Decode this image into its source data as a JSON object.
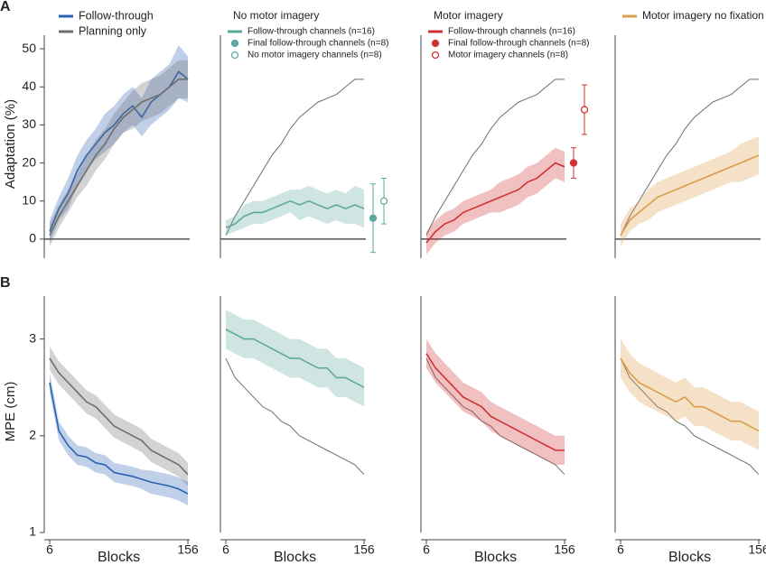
{
  "chart_data": [
    {
      "type": "line",
      "panel_label": "A",
      "ylabel": "Adaptation (%)",
      "ylim": [
        -5,
        55
      ],
      "yticks": [
        0,
        10,
        20,
        30,
        40,
        50
      ],
      "xlim": [
        6,
        156
      ],
      "zero_line": true,
      "x": [
        6,
        16,
        26,
        36,
        46,
        56,
        66,
        76,
        86,
        96,
        106,
        116,
        126,
        136,
        146,
        156
      ],
      "series": [
        {
          "name": "Follow-through",
          "color": "#2a62b4",
          "values": [
            2,
            8,
            12,
            18,
            22,
            25,
            28,
            30,
            33,
            35,
            32,
            36,
            38,
            40,
            44,
            42
          ],
          "errors": [
            3,
            3,
            4,
            4,
            4,
            4,
            5,
            5,
            5,
            5,
            5,
            6,
            6,
            6,
            7,
            6
          ]
        },
        {
          "name": "Planning only",
          "color": "#6e6e6e",
          "values": [
            1,
            6,
            10,
            14,
            18,
            22,
            25,
            29,
            32,
            34,
            36,
            37,
            38,
            40,
            42,
            42
          ],
          "errors": [
            3,
            3,
            3,
            3,
            4,
            4,
            4,
            4,
            4,
            5,
            5,
            5,
            5,
            5,
            5,
            5
          ]
        }
      ]
    },
    {
      "type": "line",
      "title": "No motor imagery",
      "ylim": [
        -5,
        55
      ],
      "xlim": [
        6,
        156
      ],
      "zero_line": true,
      "x": [
        6,
        16,
        26,
        36,
        46,
        56,
        66,
        76,
        86,
        96,
        106,
        116,
        126,
        136,
        146,
        156
      ],
      "series": [
        {
          "color": "#6e6e6e",
          "values": [
            1,
            6,
            10,
            14,
            18,
            22,
            25,
            29,
            32,
            34,
            36,
            37,
            38,
            40,
            42,
            42
          ]
        },
        {
          "name": "Follow-through channels (n=16)",
          "color": "#5fa8a0",
          "values": [
            3,
            4,
            6,
            7,
            7,
            8,
            9,
            10,
            9,
            10,
            9,
            8,
            9,
            8,
            9,
            8
          ],
          "errors": [
            2,
            2,
            3,
            3,
            3,
            3,
            3,
            3,
            4,
            4,
            4,
            4,
            4,
            4,
            5,
            5
          ]
        }
      ],
      "points": [
        {
          "name": "Final follow-through channels (n=8)",
          "color": "#5fa8a0",
          "filled": true,
          "value": 5.5,
          "error": 9
        },
        {
          "name": "No motor imagery channels (n=8)",
          "color": "#5fa8a0",
          "filled": false,
          "value": 10,
          "error": 6
        }
      ]
    },
    {
      "type": "line",
      "title": "Motor imagery",
      "ylim": [
        -5,
        55
      ],
      "xlim": [
        6,
        156
      ],
      "zero_line": true,
      "x": [
        6,
        16,
        26,
        36,
        46,
        56,
        66,
        76,
        86,
        96,
        106,
        116,
        126,
        136,
        146,
        156
      ],
      "series": [
        {
          "color": "#6e6e6e",
          "values": [
            1,
            6,
            10,
            14,
            18,
            22,
            25,
            29,
            32,
            34,
            36,
            37,
            38,
            40,
            42,
            42
          ]
        },
        {
          "name": "Follow-through channels (n=16)",
          "color": "#d03232",
          "values": [
            -1,
            2,
            4,
            5,
            7,
            8,
            9,
            10,
            11,
            12,
            13,
            15,
            16,
            18,
            20,
            19
          ],
          "errors": [
            3,
            3,
            3,
            3,
            3,
            3,
            3,
            3,
            4,
            4,
            4,
            4,
            4,
            4,
            4,
            4
          ]
        }
      ],
      "points": [
        {
          "name": "Final follow-through channels (n=8)",
          "color": "#d03232",
          "filled": true,
          "value": 20,
          "error": 4
        },
        {
          "name": "Motor imagery channels (n=8)",
          "color": "#d03232",
          "filled": false,
          "value": 34,
          "error": 6.5
        }
      ]
    },
    {
      "type": "line",
      "ylim": [
        -5,
        55
      ],
      "xlim": [
        6,
        156
      ],
      "zero_line": true,
      "x": [
        6,
        16,
        26,
        36,
        46,
        56,
        66,
        76,
        86,
        96,
        106,
        116,
        126,
        136,
        146,
        156
      ],
      "series": [
        {
          "color": "#6e6e6e",
          "values": [
            1,
            6,
            10,
            14,
            18,
            22,
            25,
            29,
            32,
            34,
            36,
            37,
            38,
            40,
            42,
            42
          ]
        },
        {
          "name": "Motor imagery no fixation",
          "color": "#dc9c48",
          "values": [
            1,
            5,
            7,
            9,
            11,
            12,
            13,
            14,
            15,
            16,
            17,
            18,
            19,
            20,
            21,
            22
          ],
          "errors": [
            3,
            3,
            3,
            4,
            4,
            4,
            4,
            4,
            4,
            4,
            4,
            4,
            4,
            5,
            5,
            5
          ]
        }
      ]
    },
    {
      "type": "line",
      "panel_label": "B",
      "ylabel": "MPE (cm)",
      "xlabel": "Blocks",
      "ylim": [
        1,
        3.5
      ],
      "yticks": [
        1,
        2,
        3
      ],
      "xlim": [
        6,
        156
      ],
      "xticks": [
        6,
        156
      ],
      "x": [
        6,
        16,
        26,
        36,
        46,
        56,
        66,
        76,
        86,
        96,
        106,
        116,
        126,
        136,
        146,
        156
      ],
      "series": [
        {
          "color": "#6e6e6e",
          "values": [
            2.8,
            2.65,
            2.55,
            2.45,
            2.35,
            2.3,
            2.2,
            2.1,
            2.05,
            2.0,
            1.95,
            1.85,
            1.8,
            1.75,
            1.7,
            1.6
          ],
          "errors": [
            0.12,
            0.12,
            0.12,
            0.12,
            0.12,
            0.12,
            0.12,
            0.12,
            0.12,
            0.12,
            0.12,
            0.12,
            0.12,
            0.12,
            0.12,
            0.12
          ]
        },
        {
          "color": "#2a62b4",
          "values": [
            2.55,
            2.05,
            1.9,
            1.8,
            1.78,
            1.72,
            1.7,
            1.62,
            1.6,
            1.58,
            1.55,
            1.52,
            1.5,
            1.48,
            1.45,
            1.4
          ],
          "errors": [
            0.1,
            0.1,
            0.1,
            0.1,
            0.1,
            0.1,
            0.1,
            0.1,
            0.1,
            0.1,
            0.1,
            0.12,
            0.12,
            0.12,
            0.12,
            0.12
          ]
        }
      ]
    },
    {
      "type": "line",
      "xlabel": "Blocks",
      "ylim": [
        1,
        3.5
      ],
      "xlim": [
        6,
        156
      ],
      "xticks": [
        6,
        156
      ],
      "x": [
        6,
        16,
        26,
        36,
        46,
        56,
        66,
        76,
        86,
        96,
        106,
        116,
        126,
        136,
        146,
        156
      ],
      "series": [
        {
          "color": "#6e6e6e",
          "values": [
            2.8,
            2.6,
            2.5,
            2.4,
            2.3,
            2.25,
            2.15,
            2.1,
            2.0,
            1.95,
            1.9,
            1.85,
            1.8,
            1.75,
            1.7,
            1.6
          ]
        },
        {
          "color": "#5fa8a0",
          "values": [
            3.1,
            3.05,
            3.0,
            3.0,
            2.95,
            2.9,
            2.85,
            2.8,
            2.8,
            2.75,
            2.7,
            2.7,
            2.6,
            2.6,
            2.55,
            2.5
          ],
          "errors": [
            0.2,
            0.2,
            0.2,
            0.2,
            0.2,
            0.2,
            0.2,
            0.2,
            0.2,
            0.2,
            0.2,
            0.2,
            0.2,
            0.2,
            0.2,
            0.2
          ]
        }
      ]
    },
    {
      "type": "line",
      "xlabel": "Blocks",
      "ylim": [
        1,
        3.5
      ],
      "xlim": [
        6,
        156
      ],
      "xticks": [
        6,
        156
      ],
      "x": [
        6,
        16,
        26,
        36,
        46,
        56,
        66,
        76,
        86,
        96,
        106,
        116,
        126,
        136,
        146,
        156
      ],
      "series": [
        {
          "color": "#6e6e6e",
          "values": [
            2.8,
            2.6,
            2.5,
            2.4,
            2.3,
            2.25,
            2.15,
            2.1,
            2.0,
            1.95,
            1.9,
            1.85,
            1.8,
            1.75,
            1.7,
            1.6
          ]
        },
        {
          "color": "#d03232",
          "values": [
            2.85,
            2.7,
            2.6,
            2.5,
            2.4,
            2.35,
            2.3,
            2.2,
            2.15,
            2.1,
            2.05,
            2.0,
            1.95,
            1.9,
            1.85,
            1.85
          ],
          "errors": [
            0.15,
            0.15,
            0.15,
            0.15,
            0.15,
            0.15,
            0.15,
            0.15,
            0.15,
            0.15,
            0.15,
            0.15,
            0.15,
            0.15,
            0.15,
            0.15
          ]
        }
      ]
    },
    {
      "type": "line",
      "xlabel": "Blocks",
      "ylim": [
        1,
        3.5
      ],
      "xlim": [
        6,
        156
      ],
      "xticks": [
        6,
        156
      ],
      "x": [
        6,
        16,
        26,
        36,
        46,
        56,
        66,
        76,
        86,
        96,
        106,
        116,
        126,
        136,
        146,
        156
      ],
      "series": [
        {
          "color": "#6e6e6e",
          "values": [
            2.8,
            2.6,
            2.5,
            2.4,
            2.3,
            2.25,
            2.15,
            2.1,
            2.0,
            1.95,
            1.9,
            1.85,
            1.8,
            1.75,
            1.7,
            1.6
          ]
        },
        {
          "color": "#dc9c48",
          "values": [
            2.8,
            2.65,
            2.55,
            2.5,
            2.45,
            2.4,
            2.35,
            2.4,
            2.3,
            2.3,
            2.25,
            2.2,
            2.15,
            2.15,
            2.1,
            2.05
          ],
          "errors": [
            0.2,
            0.2,
            0.2,
            0.2,
            0.2,
            0.2,
            0.2,
            0.2,
            0.2,
            0.2,
            0.2,
            0.2,
            0.2,
            0.2,
            0.2,
            0.2
          ]
        }
      ]
    }
  ]
}
